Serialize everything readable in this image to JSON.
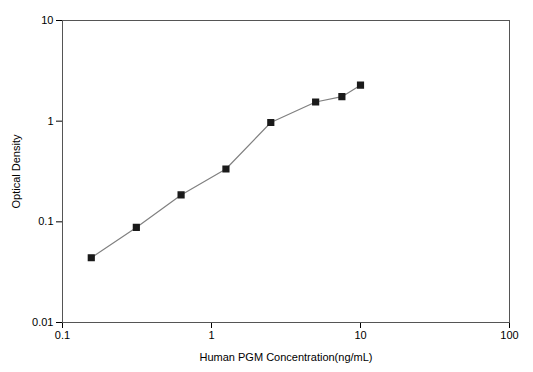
{
  "chart_data": {
    "type": "line",
    "x": [
      0.156,
      0.313,
      0.625,
      1.25,
      2.5,
      5.0,
      7.5,
      10.0
    ],
    "values": [
      0.044,
      0.088,
      0.185,
      0.335,
      0.97,
      1.55,
      1.75,
      2.28
    ],
    "xlabel": "Human PGM Concentration(ng/mL)",
    "ylabel": "Optical Density",
    "xlim": [
      0.1,
      100
    ],
    "ylim": [
      0.01,
      10
    ],
    "xticks": [
      0.1,
      1,
      10,
      100
    ],
    "yticks": [
      0.01,
      0.1,
      1,
      10
    ],
    "log": true,
    "grid": false,
    "color": "#808080",
    "marker": "square"
  }
}
